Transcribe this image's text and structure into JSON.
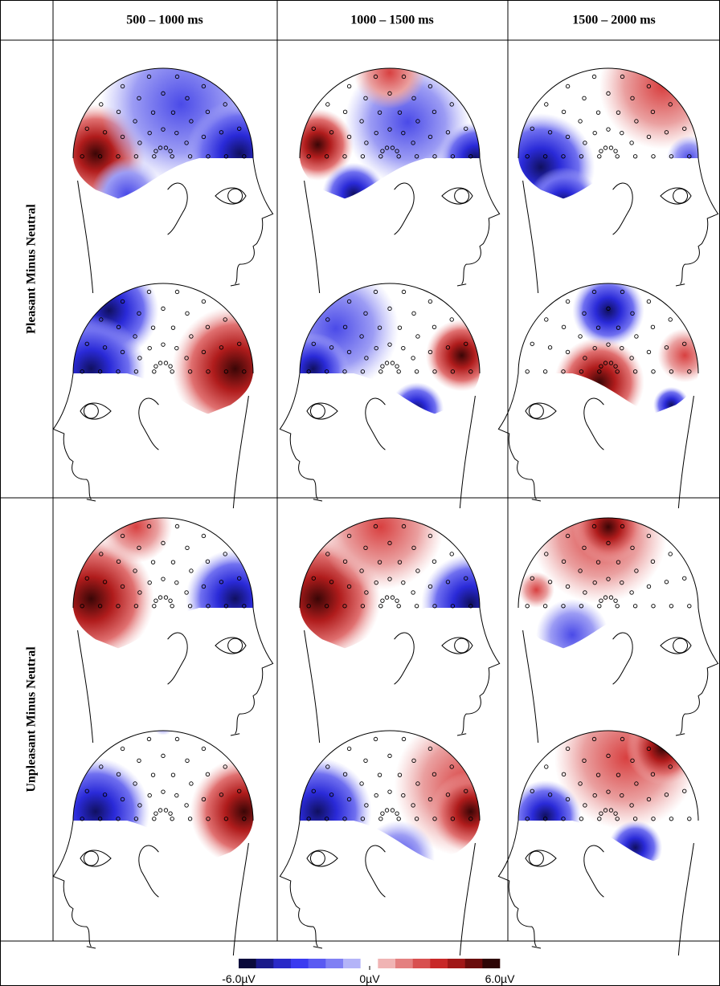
{
  "columns": [
    "500 – 1000 ms",
    "1000 – 1500 ms",
    "1500 – 2000 ms"
  ],
  "rows": [
    "Pleasant Minus Neutral",
    "Unpleasant Minus Neutral"
  ],
  "colorbar": {
    "labels": [
      "-6.0µV",
      "0µV",
      "6.0µV"
    ],
    "colors": [
      "#0a0a3c",
      "#1a1a8a",
      "#2a2ac8",
      "#3a3af0",
      "#5a5af2",
      "#8080f4",
      "#b4b4f8",
      "#ffffff",
      "#f0b4b4",
      "#e48080",
      "#d85050",
      "#c82828",
      "#a01818",
      "#6a0c0c",
      "#2e0606"
    ]
  }
}
